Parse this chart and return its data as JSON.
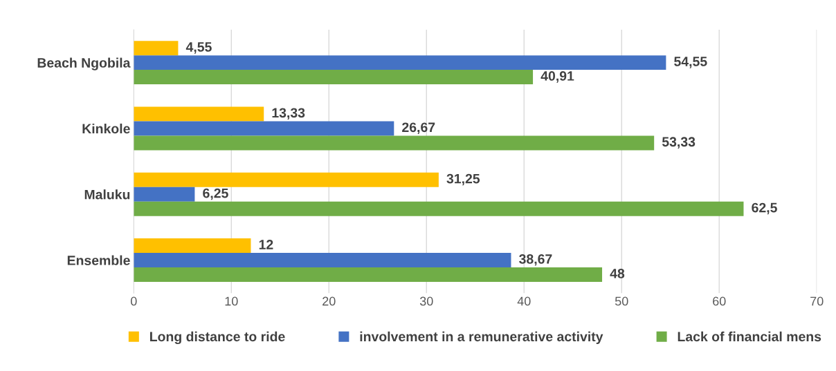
{
  "chart_data": {
    "type": "bar",
    "orientation": "horizontal",
    "categories": [
      "Beach Ngobila",
      "Kinkole",
      "Maluku",
      "Ensemble"
    ],
    "series": [
      {
        "name": "Long distance to ride",
        "color": "#ffc000",
        "values": [
          4.55,
          13.33,
          31.25,
          12
        ],
        "value_labels": [
          "4,55",
          "13,33",
          "31,25",
          "12"
        ]
      },
      {
        "name": "involvement in a remunerative activity",
        "color": "#4472c4",
        "values": [
          54.55,
          26.67,
          6.25,
          38.67
        ],
        "value_labels": [
          "54,55",
          "26,67",
          "6,25",
          "38,67"
        ]
      },
      {
        "name": "Lack of financial mens",
        "color": "#70ad47",
        "values": [
          40.91,
          53.33,
          62.5,
          48
        ],
        "value_labels": [
          "40,91",
          "53,33",
          "62,5",
          "48"
        ]
      }
    ],
    "xlim": [
      0,
      70
    ],
    "xticks": [
      0,
      10,
      20,
      30,
      40,
      50,
      60,
      70
    ],
    "grid": "x",
    "legend": "bottom"
  }
}
